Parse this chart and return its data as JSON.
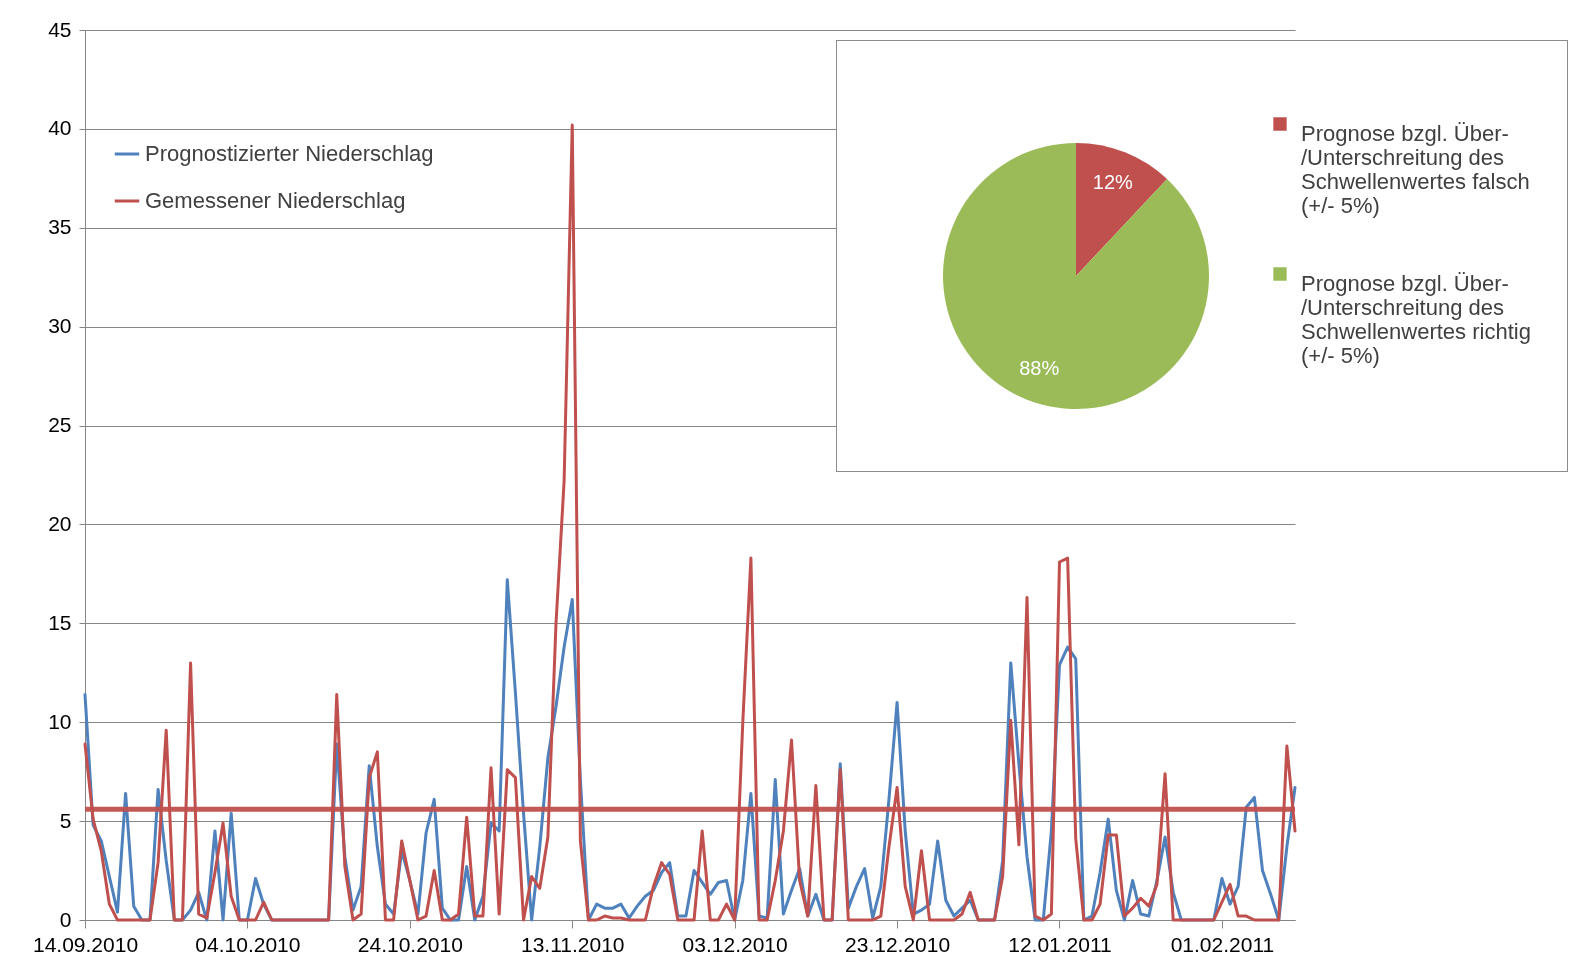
{
  "chart_data": [
    {
      "type": "line",
      "x": [
        "2010-09-14",
        "2010-09-15",
        "2010-09-16",
        "2010-09-17",
        "2010-09-18",
        "2010-09-19",
        "2010-09-20",
        "2010-09-21",
        "2010-09-22",
        "2010-09-23",
        "2010-09-24",
        "2010-09-25",
        "2010-09-26",
        "2010-09-27",
        "2010-09-28",
        "2010-09-29",
        "2010-09-30",
        "2010-10-01",
        "2010-10-02",
        "2010-10-03",
        "2010-10-04",
        "2010-10-05",
        "2010-10-06",
        "2010-10-07",
        "2010-10-08",
        "2010-10-09",
        "2010-10-10",
        "2010-10-11",
        "2010-10-12",
        "2010-10-13",
        "2010-10-14",
        "2010-10-15",
        "2010-10-16",
        "2010-10-17",
        "2010-10-18",
        "2010-10-19",
        "2010-10-20",
        "2010-10-21",
        "2010-10-22",
        "2010-10-23",
        "2010-10-24",
        "2010-10-25",
        "2010-10-26",
        "2010-10-27",
        "2010-10-28",
        "2010-10-29",
        "2010-10-30",
        "2010-10-31",
        "2010-11-01",
        "2010-11-02",
        "2010-11-03",
        "2010-11-04",
        "2010-11-05",
        "2010-11-06",
        "2010-11-07",
        "2010-11-08",
        "2010-11-09",
        "2010-11-10",
        "2010-11-11",
        "2010-11-12",
        "2010-11-13",
        "2010-11-14",
        "2010-11-15",
        "2010-11-16",
        "2010-11-17",
        "2010-11-18",
        "2010-11-19",
        "2010-11-20",
        "2010-11-21",
        "2010-11-22",
        "2010-11-23",
        "2010-11-24",
        "2010-11-25",
        "2010-11-26",
        "2010-11-27",
        "2010-11-28",
        "2010-11-29",
        "2010-11-30",
        "2010-12-01",
        "2010-12-02",
        "2010-12-03",
        "2010-12-04",
        "2010-12-05",
        "2010-12-06",
        "2010-12-07",
        "2010-12-08",
        "2010-12-09",
        "2010-12-10",
        "2010-12-11",
        "2010-12-12",
        "2010-12-13",
        "2010-12-14",
        "2010-12-15",
        "2010-12-16",
        "2010-12-17",
        "2010-12-18",
        "2010-12-19",
        "2010-12-20",
        "2010-12-21",
        "2010-12-22",
        "2010-12-23",
        "2010-12-24",
        "2010-12-25",
        "2010-12-26",
        "2010-12-27",
        "2010-12-28",
        "2010-12-29",
        "2010-12-30",
        "2010-12-31",
        "2011-01-01",
        "2011-01-02",
        "2011-01-03",
        "2011-01-04",
        "2011-01-05",
        "2011-01-06",
        "2011-01-07",
        "2011-01-08",
        "2011-01-09",
        "2011-01-10",
        "2011-01-11",
        "2011-01-12",
        "2011-01-13",
        "2011-01-14",
        "2011-01-15",
        "2011-01-16",
        "2011-01-17",
        "2011-01-18",
        "2011-01-19",
        "2011-01-20",
        "2011-01-21",
        "2011-01-22",
        "2011-01-23",
        "2011-01-24",
        "2011-01-25",
        "2011-01-26",
        "2011-01-27",
        "2011-01-28",
        "2011-01-29",
        "2011-01-30",
        "2011-01-31",
        "2011-02-01",
        "2011-02-02",
        "2011-02-03",
        "2011-02-04",
        "2011-02-05",
        "2011-02-06",
        "2011-02-07",
        "2011-02-08",
        "2011-02-09",
        "2011-02-10"
      ],
      "series": [
        {
          "name": "Prognostizierter Niederschlag",
          "color": "#4f81bd",
          "values": [
            11.4,
            4.8,
            4.0,
            2.2,
            0.4,
            6.4,
            0.7,
            0,
            0,
            6.6,
            3.0,
            0,
            0,
            0.5,
            1.4,
            0,
            4.5,
            0,
            5.4,
            0,
            0,
            2.1,
            0.8,
            0,
            0,
            0,
            0,
            0,
            0,
            0,
            0,
            8.9,
            3.2,
            0.5,
            1.7,
            7.8,
            3.7,
            0.8,
            0.3,
            3.5,
            2.0,
            0.3,
            4.4,
            6.1,
            0.6,
            0,
            0,
            2.7,
            0,
            1.2,
            4.9,
            4.5,
            17.2,
            11.5,
            5.4,
            0,
            3.7,
            8.2,
            10.8,
            13.8,
            16.2,
            7.1,
            0,
            0.8,
            0.6,
            0.6,
            0.8,
            0.1,
            0.7,
            1.2,
            1.5,
            2.4,
            2.9,
            0.2,
            0.2,
            2.5,
            1.9,
            1.3,
            1.9,
            2.0,
            0,
            2.0,
            6.4,
            0.2,
            0.1,
            7.1,
            0.3,
            1.5,
            2.6,
            0.2,
            1.3,
            0,
            0,
            7.9,
            0.6,
            1.7,
            2.6,
            0.1,
            1.7,
            6.1,
            11.0,
            4.5,
            0.3,
            0.5,
            0.8,
            4.0,
            1.0,
            0.2,
            0.6,
            1.0,
            0,
            0,
            0,
            3.0,
            13.0,
            7.9,
            3.2,
            0,
            0,
            4.5,
            12.9,
            13.8,
            13.2,
            0,
            0.2,
            2.4,
            5.1,
            1.5,
            0,
            2.0,
            0.3,
            0.2,
            2.0,
            4.2,
            1.4,
            0,
            0,
            0,
            0,
            0,
            2.1,
            0.8,
            1.7,
            5.7,
            6.2,
            2.5,
            1.3,
            0,
            3.7,
            6.7
          ]
        },
        {
          "name": "Gemessener Niederschlag",
          "color": "#c0504d",
          "values": [
            8.9,
            5.1,
            3.5,
            0.8,
            0,
            0,
            0,
            0,
            0,
            2.9,
            9.6,
            0,
            0,
            13.0,
            0.3,
            0.1,
            2.4,
            4.9,
            1.2,
            0,
            0,
            0,
            0.9,
            0,
            0,
            0,
            0,
            0,
            0,
            0,
            0,
            11.4,
            2.7,
            0,
            0.3,
            7.2,
            8.5,
            0,
            0,
            4.0,
            2.0,
            0,
            0.2,
            2.5,
            0,
            0,
            0.3,
            5.2,
            0.2,
            0.2,
            7.7,
            0.3,
            7.6,
            7.2,
            0,
            2.2,
            1.6,
            4.2,
            15.0,
            22.2,
            40.2,
            4.0,
            0,
            0,
            0.2,
            0.1,
            0.1,
            0,
            0,
            0,
            1.7,
            2.9,
            2.3,
            0,
            0,
            0,
            4.5,
            0,
            0,
            0.8,
            0,
            10.0,
            18.3,
            0,
            0,
            2.0,
            4.5,
            9.1,
            2.0,
            0.2,
            6.8,
            0,
            0,
            7.6,
            0,
            0,
            0,
            0,
            0.2,
            3.7,
            6.7,
            1.7,
            0,
            3.5,
            0,
            0,
            0,
            0,
            0.3,
            1.4,
            0,
            0,
            0,
            2.2,
            10.1,
            3.8,
            16.3,
            0.2,
            0,
            0.3,
            18.1,
            18.3,
            4.1,
            0,
            0,
            0.8,
            4.3,
            4.3,
            0.2,
            0.6,
            1.1,
            0.7,
            1.8,
            7.4,
            0,
            0,
            0,
            0,
            0,
            0,
            0.9,
            1.8,
            0.2,
            0.2,
            0,
            0,
            0,
            0,
            8.8,
            4.5
          ]
        }
      ],
      "xlim": [
        "2010-09-14",
        "2011-02-10"
      ],
      "xticks": [
        {
          "value": "2010-09-14",
          "label": "14.09.2010"
        },
        {
          "value": "2010-10-04",
          "label": "04.10.2010"
        },
        {
          "value": "2010-10-24",
          "label": "24.10.2010"
        },
        {
          "value": "2010-11-13",
          "label": "13.11.2010"
        },
        {
          "value": "2010-12-03",
          "label": "03.12.2010"
        },
        {
          "value": "2010-12-23",
          "label": "23.12.2010"
        },
        {
          "value": "2011-01-12",
          "label": "12.01.2011"
        },
        {
          "value": "2011-02-01",
          "label": "01.02.2011"
        }
      ],
      "ylim": [
        0,
        45
      ],
      "yticks": [
        0,
        5,
        10,
        15,
        20,
        25,
        30,
        35,
        40,
        45
      ],
      "ref_lines": [
        {
          "axis": "y",
          "value": 5.6,
          "color": "#c0504d"
        }
      ],
      "grid": "y",
      "legend": "top left",
      "marker": "none",
      "line_style": "solid"
    },
    {
      "type": "pie",
      "categories": [
        "Prognose bzgl. Über-/Unterschreitung des Schwellenwertes falsch (+/- 5%)",
        "Prognose bzgl. Über-/Unterschreitung des Schwellenwertes richtig (+/- 5%)"
      ],
      "values": [
        12,
        88
      ],
      "colors": [
        "#c0504d",
        "#9bbb59"
      ],
      "value_labels": [
        "12%",
        "88%"
      ],
      "legend": "right"
    }
  ]
}
